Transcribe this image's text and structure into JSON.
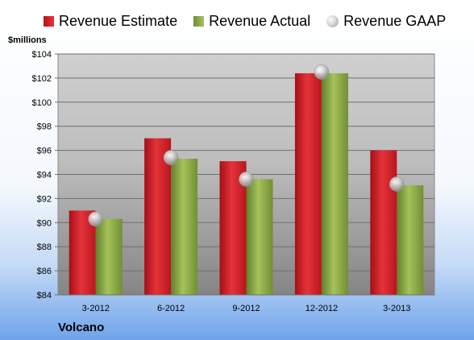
{
  "legend": {
    "estimate": "Revenue Estimate",
    "actual": "Revenue Actual",
    "gaap": "Revenue GAAP"
  },
  "unit_label": "$millions",
  "company": "Volcano",
  "colors": {
    "estimate": "#d9252c",
    "actual": "#8fad4a",
    "gaap": "#c8c8c8"
  },
  "chart_data": {
    "type": "bar",
    "categories": [
      "3-2012",
      "6-2012",
      "9-2012",
      "12-2012",
      "3-2013"
    ],
    "series": [
      {
        "name": "Revenue Estimate",
        "values": [
          91.0,
          97.0,
          95.1,
          102.4,
          96.0
        ]
      },
      {
        "name": "Revenue Actual",
        "values": [
          90.3,
          95.3,
          93.6,
          102.4,
          93.1
        ]
      },
      {
        "name": "Revenue GAAP",
        "values": [
          90.3,
          95.4,
          93.6,
          102.5,
          93.2
        ],
        "marker": "circle"
      }
    ],
    "ylabel": "$millions",
    "ylim": [
      84,
      104
    ],
    "yticks": [
      "$84",
      "$86",
      "$88",
      "$90",
      "$92",
      "$94",
      "$96",
      "$98",
      "$100",
      "$102",
      "$104"
    ],
    "grid": true,
    "legend_position": "top"
  }
}
